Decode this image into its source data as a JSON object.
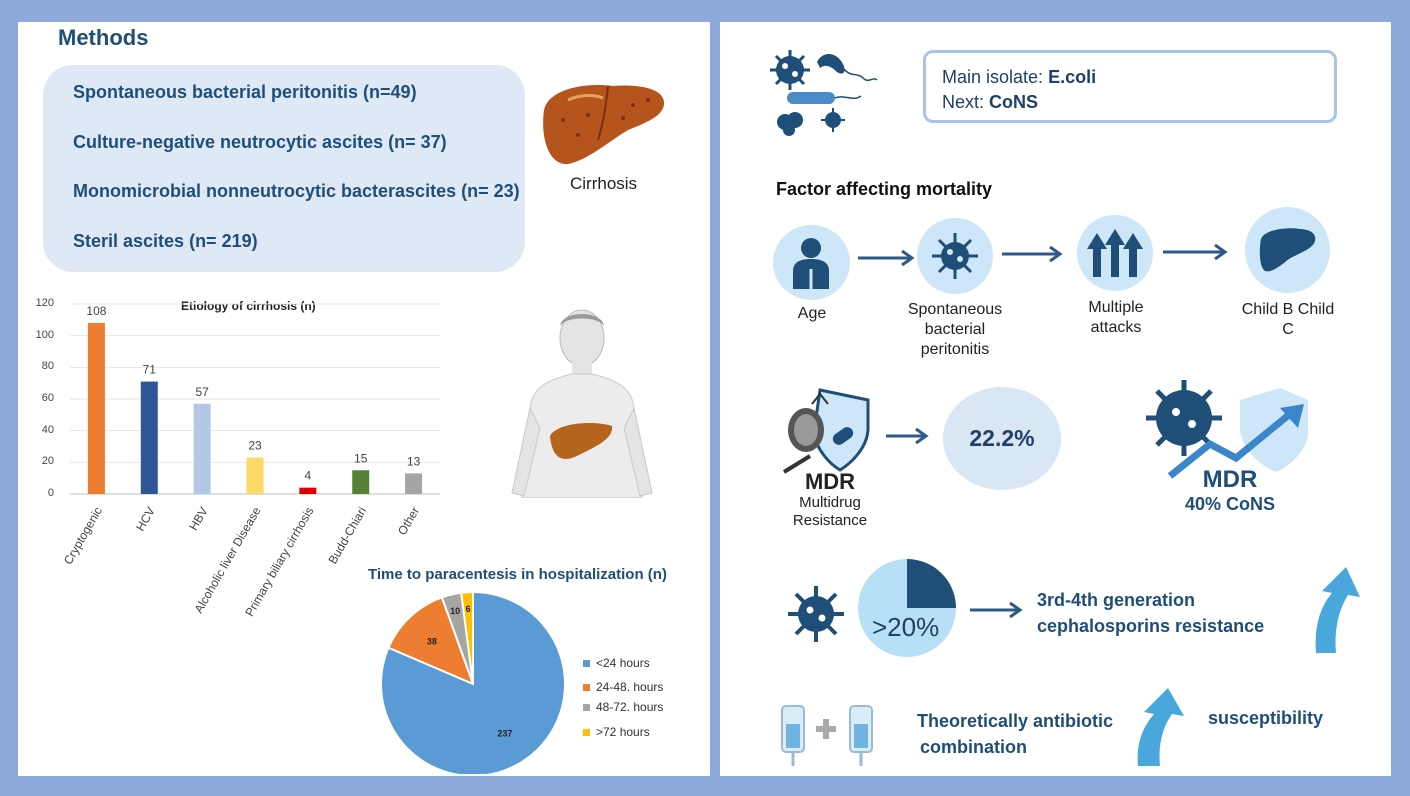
{
  "methods": {
    "title": "Methods",
    "items": [
      "Spontaneous bacterial peritonitis (n=49)",
      "Culture-negative neutrocytic ascites (n= 37)",
      "Monomicrobial nonneutrocytic bacterascites (n= 23)",
      "Steril ascites (n= 219)"
    ],
    "cirrhosis_label": "Cirrhosis"
  },
  "chart_data": [
    {
      "type": "bar",
      "title": "Etiology of cirrhosis (n)",
      "categories": [
        "Cryptogenic",
        "HCV",
        "HBV",
        "Alcoholic liver Disease",
        "Primary biliary cirrhosis",
        "Budd-Chiari",
        "Other"
      ],
      "values": [
        108,
        71,
        57,
        23,
        4,
        15,
        13
      ],
      "colors": [
        "#ed7d31",
        "#2f5597",
        "#b4c7e7",
        "#ffd966",
        "#e00000",
        "#548235",
        "#a5a5a5"
      ],
      "yticks": [
        "0",
        "20",
        "40",
        "60",
        "80",
        "100",
        "120"
      ],
      "ylim": [
        0,
        120
      ],
      "grid": true
    },
    {
      "type": "pie",
      "title": "Time to paracentesis in hospitalization (n)",
      "labels": [
        "<24 hours",
        "24-48. hours",
        "48-72. hours",
        ">72 hours"
      ],
      "values": [
        237,
        38,
        10,
        6
      ],
      "colors": [
        "#5b9bd5",
        "#ed7d31",
        "#a5a5a5",
        "#ffc000"
      ],
      "legend_position": "right"
    }
  ],
  "isolate": {
    "main_label": "Main isolate: ",
    "main_value": "E.coli",
    "next_label": "Next: ",
    "next_value": "CoNS"
  },
  "mortality": {
    "title": "Factor affecting mortality",
    "steps": [
      "Age",
      "Spontaneous bacterial peritonitis",
      "Multiple attacks",
      "Child B Child C"
    ]
  },
  "mdr": {
    "label_big": "MDR",
    "label_small_1": "Multidrug",
    "label_small_2": "Resistance",
    "percent": "22.2%",
    "cons_big": "MDR",
    "cons_small": "40% CoNS"
  },
  "cephalosporin": {
    "percent": ">20%",
    "line1": "3rd-4th generation",
    "line2": "cephalosporins resistance"
  },
  "combination": {
    "line1": "Theoretically antibiotic",
    "line2": "combination",
    "susceptibility": "susceptibility"
  }
}
